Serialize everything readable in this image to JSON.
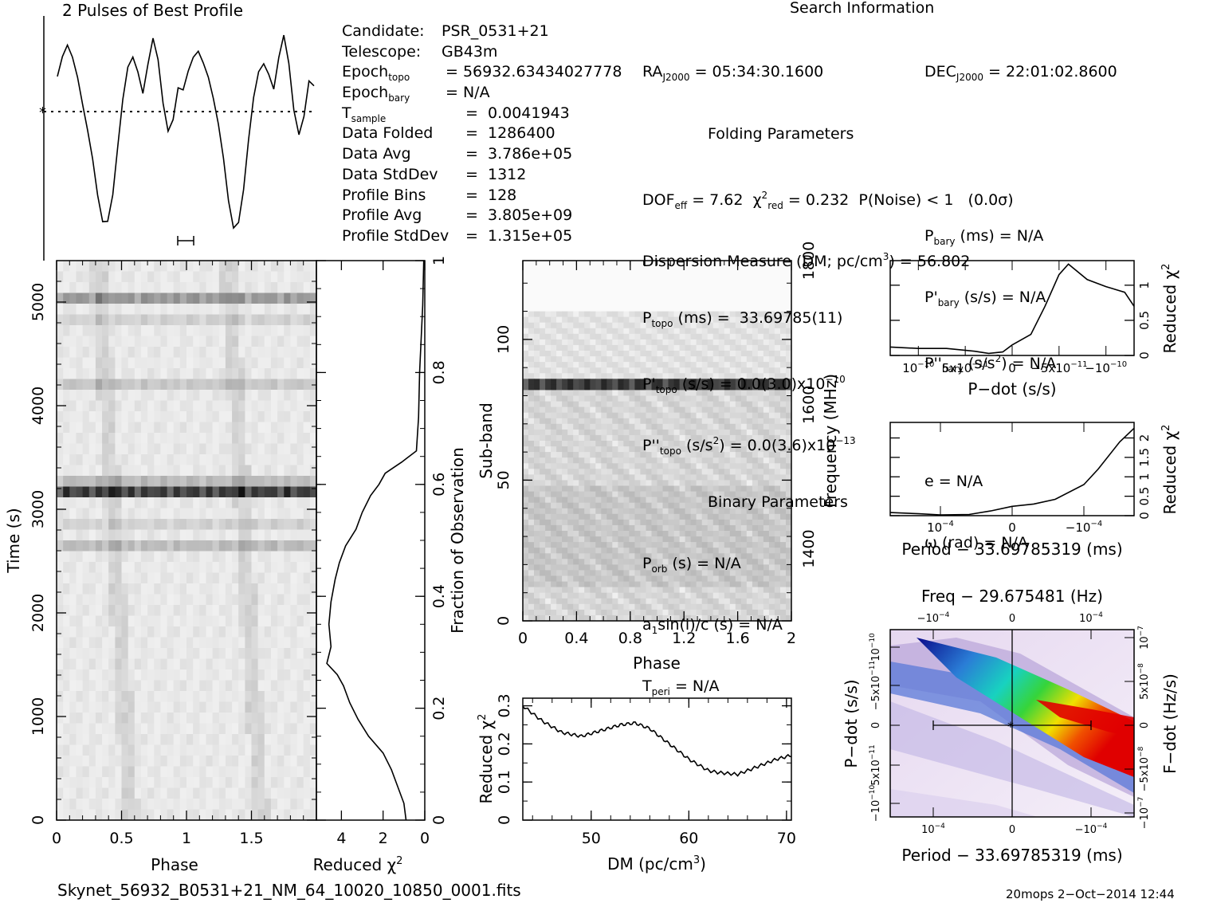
{
  "profile": {
    "title": "2 Pulses of Best Profile",
    "values": [
      0.78,
      0.86,
      0.92,
      0.88,
      0.8,
      0.66,
      0.5,
      0.32,
      0.12,
      0.0,
      0.03,
      0.18,
      0.42,
      0.64,
      0.8,
      0.87,
      0.82,
      0.72,
      0.86,
      0.97,
      0.84,
      0.62,
      0.5,
      0.58,
      0.74,
      0.7,
      0.78,
      0.86,
      0.92,
      0.88,
      0.8,
      0.66,
      0.5,
      0.32,
      0.12,
      0.0,
      0.03,
      0.18,
      0.42,
      0.64,
      0.8,
      0.87,
      0.82,
      0.72,
      0.86,
      0.97,
      0.84,
      0.62,
      0.5,
      0.58,
      0.74,
      0.7
    ]
  },
  "search_info": {
    "title": "Search Information",
    "col1": [
      {
        "label": "Candidate:",
        "value": "PSR_0531+21"
      },
      {
        "label": "Telescope:",
        "value": "GB43m"
      },
      {
        "label": "Epoch_topo",
        "value": "= 56932.63434027778"
      },
      {
        "label": "Epoch_bary",
        "value": "= N/A"
      },
      {
        "label": "T_sample",
        "value": "=  0.0041943"
      },
      {
        "label": "Data Folded",
        "value": "=  1286400"
      },
      {
        "label": "Data Avg",
        "value": "=  3.786e+05"
      },
      {
        "label": "Data StdDev",
        "value": "=  1312"
      },
      {
        "label": "Profile Bins",
        "value": "=  128"
      },
      {
        "label": "Profile Avg",
        "value": "=  3.805e+09"
      },
      {
        "label": "Profile StdDev",
        "value": "=  1.315e+05"
      }
    ],
    "ra": "= 05:34:30.1600",
    "dec": "= 22:01:02.8600",
    "folding_title": "Folding Parameters",
    "dof": "= 7.62",
    "chi": "= 0.232",
    "pnoise": "P(Noise) < 1   (0.0σ)",
    "dm_line": "Dispersion Measure (DM; pc/cm",
    "dm_value": ") = 56.802",
    "ptopo": "(ms) =  33.69785(11)",
    "pdtopo": "(s/s) = 0.0(3.0)x10",
    "pdtopo_exp": "−10",
    "pddtopo": "(s/s",
    "pddtopo_val": ") = 0.0(3.6)x10",
    "pddtopo_exp": "−13",
    "pbary": "(ms) = N/A",
    "pdbary": "(s/s) = N/A",
    "pddbary": "(s/s",
    "pddbary_val": ") = N/A",
    "binary_title": "Binary Parameters",
    "porb": "(s) = N/A",
    "a1": "sin(i)/c (s) = N/A",
    "tperi": "= N/A",
    "e": "e = N/A",
    "omega": "ω (rad) = N/A"
  },
  "panels": {
    "time_phase": {
      "xlabel": "Phase",
      "ylabel": "Time (s)",
      "xticks": [
        "0",
        "0.5",
        "1",
        "1.5"
      ],
      "yticks": [
        "0",
        "1000",
        "2000",
        "3000",
        "4000",
        "5000"
      ]
    },
    "red_chi_time": {
      "xlabel": "Reduced χ",
      "xlabel_sup": "2",
      "xticks": [
        "4",
        "2",
        "0"
      ],
      "yticks": [
        "0",
        "0.2",
        "0.4",
        "0.6",
        "0.8",
        "1"
      ],
      "ylabel": "Fraction of Observation"
    },
    "subband": {
      "xlabel": "Phase",
      "ylabel": "Sub-band",
      "ylabel_right": "Frequency (MHz)",
      "xticks": [
        "0",
        "0.4",
        "0.8",
        "1.2",
        "1.6",
        "2"
      ],
      "yticks": [
        "0",
        "50",
        "100"
      ],
      "rticks": [
        "1400",
        "1600",
        "1800"
      ]
    },
    "dm": {
      "xlabel": "DM (pc/cm",
      "xlabel_sup": "3",
      "xlabel_end": ")",
      "ylabel": "Reduced χ",
      "ylabel_sup": "2",
      "xticks": [
        "50",
        "60",
        "70"
      ],
      "yticks": [
        "0",
        "0.1",
        "0.2",
        "0.3"
      ]
    },
    "pdot": {
      "xlabel": "P−dot (s/s)",
      "ylabel": "Reduced χ",
      "ylabel_sup": "2",
      "xticks": [
        "10",
        "5x10",
        "0",
        "−5x10",
        "−10"
      ],
      "yticks": [
        "0",
        "0.5",
        "1"
      ]
    },
    "period": {
      "xlabel": "Period − 33.69785319 (ms)",
      "ylabel": "Reduced χ",
      "ylabel_sup": "2",
      "xticks": [
        "10",
        "0",
        "−10"
      ],
      "yticks": [
        "0",
        "0.5",
        "1",
        "1.5",
        "2"
      ]
    },
    "ppdot": {
      "top_label": "Freq − 29.675481 (Hz)",
      "xlabel": "Period − 33.69785319 (ms)",
      "ylabel": "P−dot (s/s)",
      "ylabel_right": "F−dot (Hz/s)"
    }
  },
  "chart_data": [
    {
      "type": "line",
      "title": "2 Pulses of Best Profile",
      "xlim": [
        0,
        2
      ]
    },
    {
      "type": "heatmap",
      "xlabel": "Phase",
      "ylabel": "Time (s)",
      "xlim": [
        0,
        2
      ],
      "ylim": [
        0,
        5400
      ]
    },
    {
      "type": "line",
      "xlabel": "Reduced χ2",
      "ylabel": "Fraction of Observation",
      "x": [
        0.9,
        1.0,
        1.3,
        1.6,
        2.0,
        2.7,
        3.2,
        3.6,
        3.9,
        4.2,
        4.7,
        4.5,
        4.6,
        4.5,
        4.3,
        4.1,
        3.8,
        3.3,
        3.0,
        2.6,
        2.2,
        1.9,
        1.5,
        1.1,
        0.4,
        0.3,
        0.25,
        0.1,
        0.05
      ],
      "y": [
        0,
        0.03,
        0.06,
        0.09,
        0.12,
        0.15,
        0.18,
        0.21,
        0.24,
        0.26,
        0.28,
        0.31,
        0.35,
        0.39,
        0.43,
        0.46,
        0.49,
        0.52,
        0.55,
        0.58,
        0.6,
        0.62,
        0.63,
        0.64,
        0.66,
        0.72,
        0.8,
        0.92,
        1.0
      ],
      "xlim": [
        5.2,
        0
      ],
      "ylim": [
        0,
        1
      ]
    },
    {
      "type": "heatmap",
      "xlabel": "Phase",
      "ylabel": "Sub-band",
      "xlim": [
        0,
        2
      ],
      "ylim": [
        0,
        128
      ],
      "y2label": "Frequency (MHz)"
    },
    {
      "type": "line",
      "xlabel": "DM (pc/cm3)",
      "ylabel": "Reduced χ2",
      "xlim": [
        43,
        70.5
      ],
      "ylim": [
        0,
        0.32
      ],
      "x": [
        43,
        45,
        47,
        49,
        51,
        53,
        54.5,
        56,
        58,
        60,
        62,
        63,
        65,
        67,
        69,
        70.5
      ],
      "y": [
        0.3,
        0.26,
        0.23,
        0.22,
        0.235,
        0.25,
        0.255,
        0.24,
        0.2,
        0.16,
        0.13,
        0.125,
        0.12,
        0.14,
        0.16,
        0.17
      ]
    },
    {
      "type": "line",
      "xlabel": "P−dot (s/s)",
      "ylabel": "Reduced χ2",
      "xlim": [
        1.3e-10,
        -1.3e-10
      ],
      "ylim": [
        0,
        1.35
      ],
      "x": [
        1.3e-10,
        1e-10,
        7e-11,
        4e-11,
        2.5e-11,
        1e-11,
        0,
        -2e-11,
        -3.5e-11,
        -5e-11,
        -6e-11,
        -8e-11,
        -1e-10,
        -1.2e-10,
        -1.3e-10
      ],
      "y": [
        0.12,
        0.1,
        0.1,
        0.06,
        0.03,
        0.05,
        0.15,
        0.3,
        0.7,
        1.15,
        1.3,
        1.08,
        0.98,
        0.9,
        0.7
      ]
    },
    {
      "type": "line",
      "xlabel": "Period − 33.69785319 (ms)",
      "ylabel": "Reduced χ2",
      "xlim": [
        0.00017,
        -0.00017
      ],
      "ylim": [
        0,
        2.4
      ],
      "x": [
        0.00017,
        0.00013,
        0.0001,
        6e-05,
        3e-05,
        0,
        -3e-05,
        -6e-05,
        -0.0001,
        -0.00012,
        -0.00015,
        -0.00017
      ],
      "y": [
        0.08,
        0.05,
        0.02,
        0.03,
        0.12,
        0.24,
        0.3,
        0.42,
        0.8,
        1.2,
        1.9,
        2.25
      ]
    },
    {
      "type": "heatmap",
      "xlabel": "Period − 33.69785319 (ms)",
      "ylabel": "P−dot (s/s)"
    }
  ],
  "footer": {
    "filename": "Skynet_56932_B0531+21_NM_64_10020_10850_0001.fits",
    "stamp": "20mops   2−Oct−2014 12:44"
  }
}
